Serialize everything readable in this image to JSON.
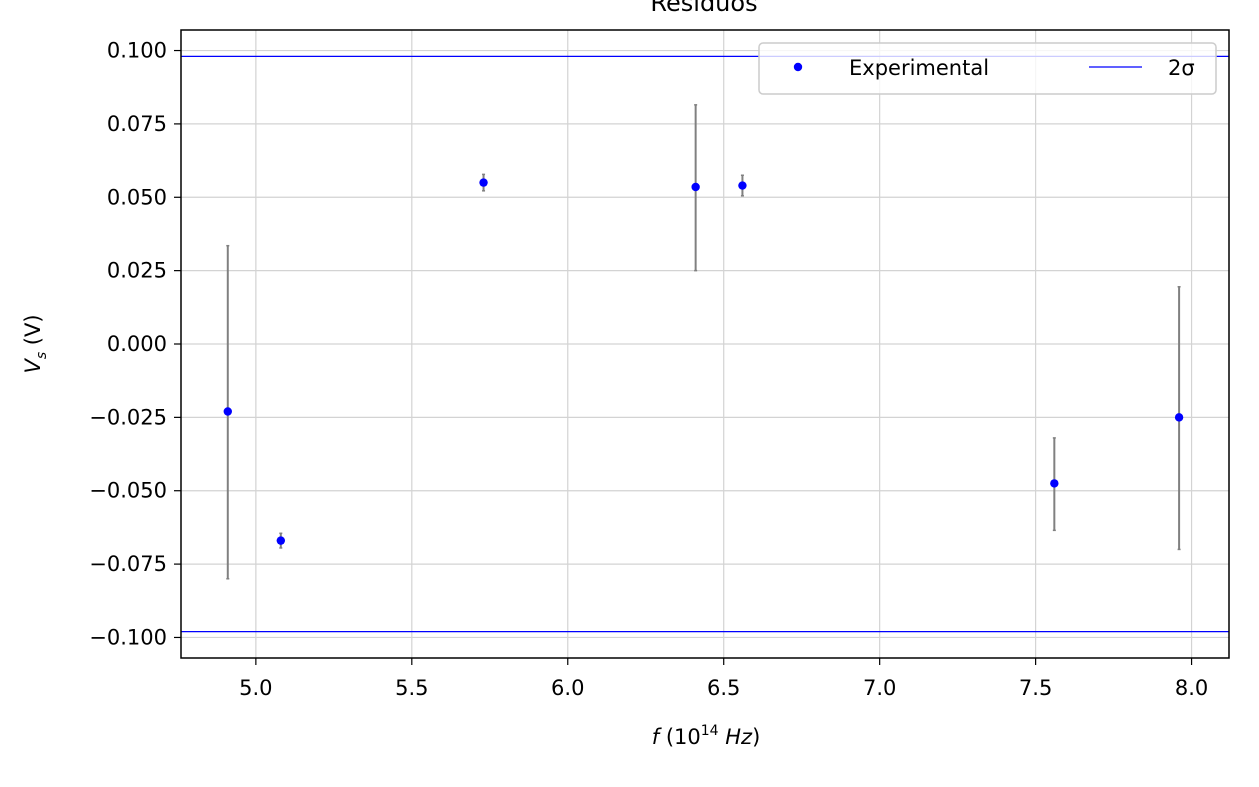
{
  "chart_data": {
    "type": "scatter",
    "title": "Residuos",
    "xlabel": {
      "main": "f",
      "open": " (10",
      "sup": "14",
      "unit": " Hz",
      "close": ")"
    },
    "ylabel": {
      "main": "V",
      "sub": "s",
      "rest": " (V)"
    },
    "xlim": [
      4.76,
      8.12
    ],
    "ylim": [
      -0.107,
      0.107
    ],
    "xticks": [
      5.0,
      5.5,
      6.0,
      6.5,
      7.0,
      7.5,
      8.0
    ],
    "xtick_labels": [
      "5.0",
      "5.5",
      "6.0",
      "6.5",
      "7.0",
      "7.5",
      "8.0"
    ],
    "yticks": [
      0.1,
      0.075,
      0.05,
      0.025,
      0.0,
      -0.025,
      -0.05,
      -0.075,
      -0.1
    ],
    "ytick_labels": [
      "0.100",
      "0.075",
      "0.050",
      "0.025",
      "0.000",
      "−0.025",
      "−0.050",
      "−0.075",
      "−0.100"
    ],
    "grid": true,
    "legend_position": "top-right",
    "series": [
      {
        "name": "Experimental",
        "kind": "points",
        "color": "#0000ff",
        "x": [
          4.91,
          5.08,
          5.73,
          6.41,
          6.56,
          7.56,
          7.96
        ],
        "y": [
          -0.023,
          -0.067,
          0.055,
          0.0535,
          0.054,
          -0.0475,
          -0.025
        ],
        "yerr_low": [
          0.057,
          0.0025,
          0.0028,
          0.0285,
          0.0035,
          0.016,
          0.045
        ],
        "yerr_high": [
          0.0565,
          0.0025,
          0.0028,
          0.028,
          0.0035,
          0.0155,
          0.0445
        ],
        "errorbar_color": "#808080"
      },
      {
        "name": "2σ",
        "kind": "hlines",
        "color": "#0000ff",
        "y": [
          0.098,
          -0.098
        ]
      }
    ]
  }
}
